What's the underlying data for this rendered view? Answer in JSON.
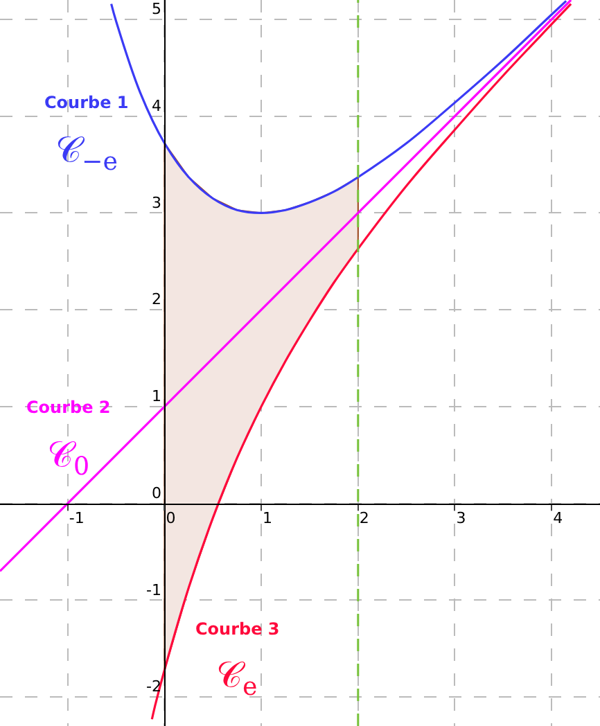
{
  "chart_data": {
    "type": "line",
    "series": [
      {
        "name": "Courbe 1",
        "color": "#3b3bf5",
        "x": [
          -0.55,
          -0.5,
          -0.25,
          0,
          0.25,
          0.5,
          0.75,
          1,
          1.25,
          1.5,
          1.75,
          2,
          2.5,
          3,
          3.5,
          4,
          4.15
        ],
        "values": [
          5.16,
          4.98,
          4.24,
          3.72,
          3.37,
          3.15,
          3.03,
          3.0,
          3.03,
          3.11,
          3.22,
          3.37,
          3.72,
          4.14,
          4.58,
          5.05,
          5.19
        ],
        "upper": [
          null,
          null,
          null,
          3.72,
          3.37,
          3.15,
          3.03,
          3.0,
          3.03,
          3.11,
          3.22,
          3.37,
          null,
          null,
          null,
          null,
          null
        ],
        "lower": [
          null,
          null,
          null,
          -1.72,
          -0.87,
          -0.15,
          0.47,
          1.0,
          1.47,
          1.89,
          2.28,
          2.63,
          null,
          null,
          null,
          null,
          null
        ]
      },
      {
        "name": "Courbe 2",
        "color": "#ff00ff",
        "x": [
          -1.7,
          0,
          2,
          4.2
        ],
        "values": [
          -0.7,
          1,
          3,
          5.2
        ]
      },
      {
        "name": "Courbe 3",
        "color": "#ff0a3c",
        "x": [
          -0.13,
          -0.1,
          0,
          0.25,
          0.5,
          0.75,
          1,
          1.25,
          1.5,
          1.75,
          2,
          2.5,
          3,
          3.5,
          4,
          4.2
        ],
        "values": [
          -2.23,
          -2.1,
          -1.72,
          -0.87,
          -0.15,
          0.47,
          1.0,
          1.47,
          1.89,
          2.28,
          2.63,
          3.28,
          3.86,
          4.42,
          4.95,
          5.16
        ]
      }
    ],
    "annotations": [
      "𝒞$_{−e}$",
      "𝒞$_{0}$",
      "𝒞$_{e}$"
    ],
    "ref_lines": [
      {
        "axis": "x",
        "value": 2,
        "color": "#77c23a",
        "line_style": "dashed"
      }
    ],
    "xlim": [
      -1.7,
      4.5
    ],
    "ylim": [
      -2.3,
      5.2
    ],
    "xticks": [
      -1,
      0,
      1,
      2,
      3,
      4
    ],
    "yticks": [
      -2,
      -1,
      0,
      1,
      2,
      3,
      4,
      5
    ],
    "grid": true,
    "legend": false
  }
}
